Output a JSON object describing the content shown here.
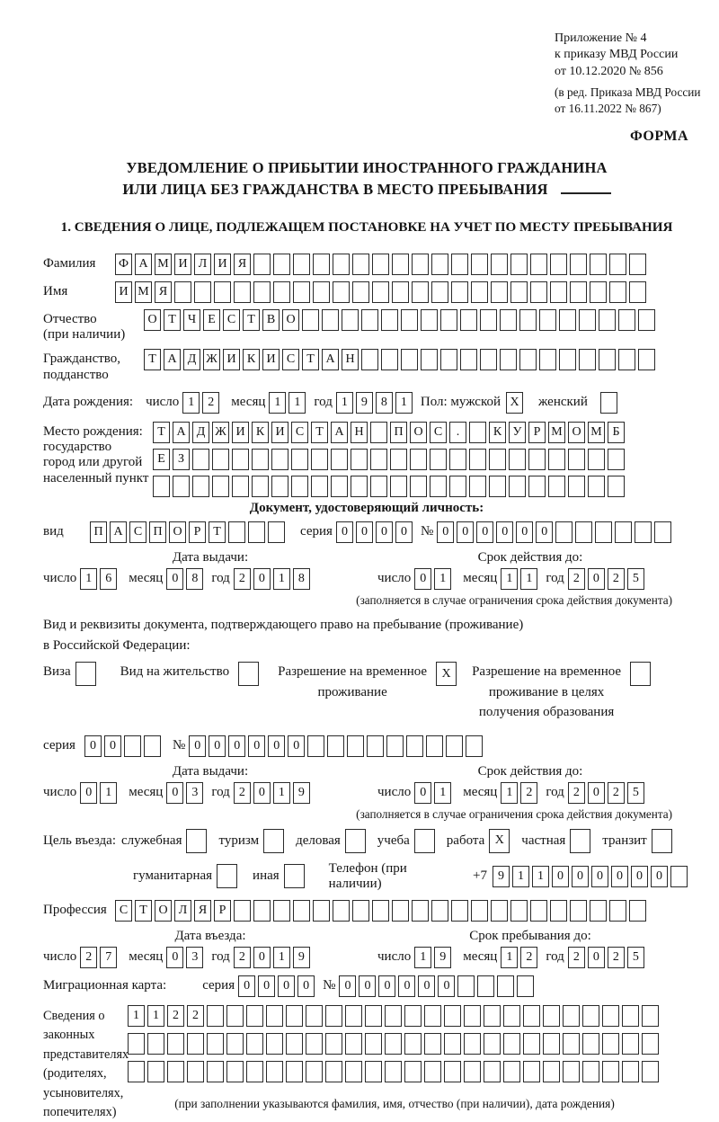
{
  "page": {
    "header_lines": [
      "Приложение № 4",
      "к приказу МВД России",
      "от 10.12.2020 № 856"
    ],
    "header_sub_lines": [
      "(в ред. Приказа МВД России",
      "от 16.11.2022 № 867)"
    ],
    "form_label": "ФОРМА",
    "title_line1": "УВЕДОМЛЕНИЕ О ПРИБЫТИИ ИНОСТРАННОГО ГРАЖДАНИНА",
    "title_line2": "ИЛИ ЛИЦА БЕЗ ГРАЖДАНСТВА В МЕСТО ПРЕБЫВАНИЯ",
    "section1_heading": "1. СВЕДЕНИЯ О ЛИЦЕ, ПОДЛЕЖАЩЕМ ПОСТАНОВКЕ НА УЧЕТ ПО МЕСТУ ПРЕБЫВАНИЯ"
  },
  "labels": {
    "day": "число",
    "month": "месяц",
    "year": "год",
    "series": "серия",
    "number": "№",
    "issue_date": "Дата выдачи:",
    "valid_until": "Срок действия до:",
    "validity_note": "(заполняется в случае ограничения срока действия документа)"
  },
  "surname": {
    "label": "Фамилия",
    "boxes": {
      "value": "ФАМИЛИЯ",
      "count": 27
    }
  },
  "firstname": {
    "label": "Имя",
    "boxes": {
      "value": "ИМЯ",
      "count": 27
    }
  },
  "patronymic": {
    "label_line1": "Отчество",
    "label_line2": "(при наличии)",
    "boxes": {
      "value": "ОТЧЕСТВО",
      "count": 26
    }
  },
  "citizenship": {
    "label_line1": "Гражданство,",
    "label_line2": "подданство",
    "boxes": {
      "value": "ТАДЖИКИСТАН",
      "count": 26
    }
  },
  "birth": {
    "label": "Дата рождения:",
    "day": {
      "value": "12",
      "count": 2
    },
    "month": {
      "value": "11",
      "count": 2
    },
    "year": {
      "value": "1981",
      "count": 4
    },
    "gender_label": "Пол: мужской",
    "male_box": {
      "value": "X",
      "count": 1
    },
    "female_label": "женский",
    "female_box": {
      "value": "",
      "count": 1
    }
  },
  "birthplace": {
    "label_line1": "Место рождения:",
    "label_line2": "государство",
    "label_line3": "город или другой",
    "label_line4": "населенный пункт",
    "row1": {
      "value": "ТАДЖИКИСТАН ПОС. КУРМОМБ",
      "count": 24
    },
    "row2": {
      "value": "ЕЗ",
      "count": 24
    },
    "row3": {
      "value": "",
      "count": 24
    }
  },
  "identity_doc": {
    "heading": "Документ, удостоверяющий личность:",
    "type_label": "вид",
    "type_boxes": {
      "value": "ПАСПОРТ",
      "count": 10
    },
    "series_boxes": {
      "value": "0000",
      "count": 4
    },
    "number_boxes": {
      "value": "000000",
      "count": 12
    },
    "issue_day": {
      "value": "16",
      "count": 2
    },
    "issue_month": {
      "value": "08",
      "count": 2
    },
    "issue_year": {
      "value": "2018",
      "count": 4
    },
    "valid_day": {
      "value": "01",
      "count": 2
    },
    "valid_month": {
      "value": "11",
      "count": 2
    },
    "valid_year": {
      "value": "2025",
      "count": 4
    }
  },
  "residence_doc": {
    "intro_line1": "Вид и реквизиты документа, подтверждающего право на пребывание (проживание)",
    "intro_line2": "в Российской Федерации:",
    "visa_label": "Виза",
    "visa_box": {
      "value": "",
      "count": 1
    },
    "permit_label": "Вид на жительство",
    "permit_box": {
      "value": "",
      "count": 1
    },
    "temp_label_line1": "Разрешение на временное",
    "temp_label_line2": "проживание",
    "temp_box": {
      "value": "X",
      "count": 1
    },
    "edu_label_line1": "Разрешение на временное",
    "edu_label_line2": "проживание в целях",
    "edu_label_line3": "получения образования",
    "edu_box": {
      "value": "",
      "count": 1
    },
    "series_boxes": {
      "value": "00",
      "count": 4
    },
    "number_boxes": {
      "value": "000000",
      "count": 15
    },
    "issue_day": {
      "value": "01",
      "count": 2
    },
    "issue_month": {
      "value": "03",
      "count": 2
    },
    "issue_year": {
      "value": "2019",
      "count": 4
    },
    "valid_day": {
      "value": "01",
      "count": 2
    },
    "valid_month": {
      "value": "12",
      "count": 2
    },
    "valid_year": {
      "value": "2025",
      "count": 4
    }
  },
  "purpose": {
    "label": "Цель въезда:",
    "row1": [
      {
        "label": "служебная",
        "box": {
          "value": "",
          "count": 1
        }
      },
      {
        "label": "туризм",
        "box": {
          "value": "",
          "count": 1
        }
      },
      {
        "label": "деловая",
        "box": {
          "value": "",
          "count": 1
        }
      },
      {
        "label": "учеба",
        "box": {
          "value": "",
          "count": 1
        }
      },
      {
        "label": "работа",
        "box": {
          "value": "X",
          "count": 1
        }
      },
      {
        "label": "частная",
        "box": {
          "value": "",
          "count": 1
        }
      },
      {
        "label": "транзит",
        "box": {
          "value": "",
          "count": 1
        }
      }
    ],
    "row2": [
      {
        "label": "гуманитарная",
        "box": {
          "value": "",
          "count": 1
        }
      },
      {
        "label": "иная",
        "box": {
          "value": "",
          "count": 1
        }
      }
    ],
    "phone_label": "Телефон (при наличии)",
    "phone_prefix": "+7",
    "phone_boxes": {
      "value": "911000000",
      "count": 10
    }
  },
  "profession": {
    "label": "Профессия",
    "boxes": {
      "value": "СТОЛЯР",
      "count": 27
    }
  },
  "entry": {
    "date_label": "Дата въезда:",
    "day": {
      "value": "27",
      "count": 2
    },
    "month": {
      "value": "03",
      "count": 2
    },
    "year": {
      "value": "2019",
      "count": 4
    },
    "stay_label": "Срок пребывания до:",
    "stay_day": {
      "value": "19",
      "count": 2
    },
    "stay_month": {
      "value": "12",
      "count": 2
    },
    "stay_year": {
      "value": "2025",
      "count": 4
    }
  },
  "migration_card": {
    "label": "Миграционная карта:",
    "series_boxes": {
      "value": "0000",
      "count": 4
    },
    "number_boxes": {
      "value": "000000",
      "count": 10
    }
  },
  "representatives": {
    "label_line1": "Сведения о",
    "label_line2": "законных",
    "label_line3": "представителях",
    "label_line4": "(родителях,",
    "label_line5": "усыновителях,",
    "label_line6": "попечителях)",
    "row1": {
      "value": "1122",
      "count": 27
    },
    "row2": {
      "value": "",
      "count": 27
    },
    "row3": {
      "value": "",
      "count": 27
    },
    "note": "(при заполнении указываются фамилия, имя, отчество (при наличии), дата рождения)"
  }
}
